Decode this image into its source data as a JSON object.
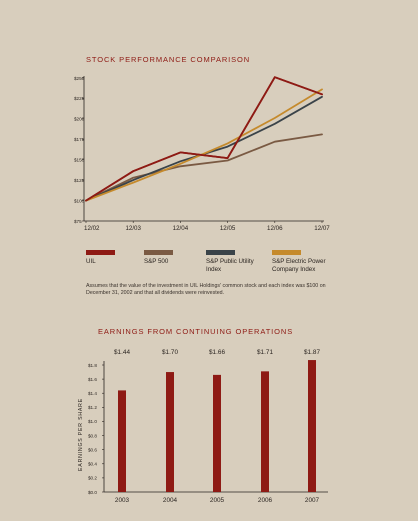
{
  "colors": {
    "background": "#d8cebd",
    "uil": "#8e1a14",
    "sp500": "#7a5a43",
    "utility": "#3a4349",
    "electric": "#c58a2c",
    "axis": "#2a2420",
    "bar": "#8e1a14"
  },
  "stock_chart": {
    "title": "STOCK PERFORMANCE COMPARISON",
    "footnote": "Assumes that the value of the investment in UIL Holdings' common stock and each index was $100 on December 31, 2002 and that all dividends were reinvested.",
    "legend": [
      {
        "label": "UIL",
        "color": "#8e1a14"
      },
      {
        "label": "S&P 500",
        "color": "#7a5a43"
      },
      {
        "label": "S&P Public Utility Index",
        "color": "#3a4349"
      },
      {
        "label": "S&P Electric Power Company Index",
        "color": "#c58a2c"
      }
    ]
  },
  "earnings_chart": {
    "title": "EARNINGS FROM CONTINUING OPERATIONS",
    "ylabel": "EARNINGS PER SHARE"
  },
  "chart_data": [
    {
      "type": "line",
      "title": "STOCK PERFORMANCE COMPARISON",
      "x": [
        "12/02",
        "12/03",
        "12/04",
        "12/05",
        "12/06",
        "12/07"
      ],
      "y_ticks": [
        "$75",
        "$100",
        "$125",
        "$150",
        "$175",
        "$200",
        "$225",
        "$250"
      ],
      "ylim": [
        75,
        250
      ],
      "grid": false,
      "legend_position": "bottom",
      "series": [
        {
          "name": "UIL",
          "color": "#8e1a14",
          "values": [
            100,
            136,
            159,
            152,
            251,
            230
          ]
        },
        {
          "name": "S&P 500",
          "color": "#7a5a43",
          "values": [
            100,
            128,
            142,
            149,
            172,
            181
          ]
        },
        {
          "name": "S&P Public Utility Index",
          "color": "#3a4349",
          "values": [
            100,
            125,
            148,
            166,
            194,
            227
          ]
        },
        {
          "name": "S&P Electric Power Company Index",
          "color": "#c58a2c",
          "values": [
            100,
            122,
            145,
            170,
            201,
            236
          ]
        }
      ]
    },
    {
      "type": "bar",
      "title": "EARNINGS FROM CONTINUING OPERATIONS",
      "categories": [
        "2003",
        "2004",
        "2005",
        "2006",
        "2007"
      ],
      "values": [
        1.44,
        1.7,
        1.66,
        1.71,
        1.87
      ],
      "value_labels": [
        "$1.44",
        "$1.70",
        "$1.66",
        "$1.71",
        "$1.87"
      ],
      "y_ticks": [
        "$0.0",
        "$0.2",
        "$0.4",
        "$0.6",
        "$0.8",
        "$1.0",
        "$1.2",
        "$1.4",
        "$1.6",
        "$1.8"
      ],
      "ylim": [
        0,
        1.8
      ],
      "ylabel": "EARNINGS PER SHARE",
      "grid": false
    }
  ]
}
